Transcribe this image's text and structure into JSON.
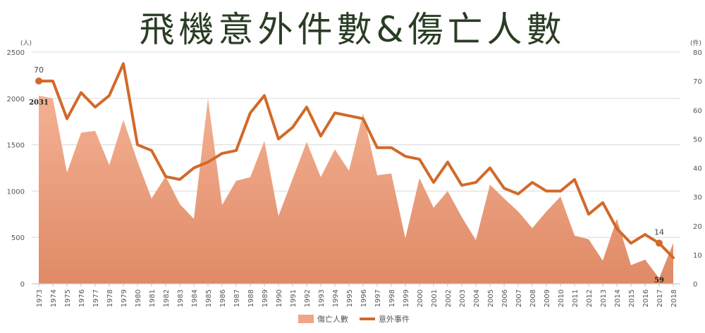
{
  "title": "飛機意外件數&傷亡人數",
  "chart_data": {
    "type": "area+line",
    "left_axis_unit": "(人)",
    "right_axis_unit": "(件)",
    "left_ylim": [
      0,
      2500
    ],
    "right_ylim": [
      0,
      80
    ],
    "left_ticks": [
      "0",
      "500",
      "1000",
      "1500",
      "2000",
      "2500"
    ],
    "right_ticks": [
      "0",
      "10",
      "20",
      "30",
      "40",
      "50",
      "60",
      "70",
      "80"
    ],
    "categories": [
      "1973",
      "1974",
      "1975",
      "1976",
      "1977",
      "1978",
      "1979",
      "1980",
      "1981",
      "1982",
      "1983",
      "1984",
      "1985",
      "1986",
      "1987",
      "1988",
      "1989",
      "1990",
      "1991",
      "1992",
      "1993",
      "1994",
      "1995",
      "1996",
      "1997",
      "1998",
      "1999",
      "2000",
      "2001",
      "2002",
      "2003",
      "2004",
      "2005",
      "2006",
      "2007",
      "2008",
      "2009",
      "2010",
      "2011",
      "2012",
      "2013",
      "2014",
      "2015",
      "2016",
      "2017",
      "2018"
    ],
    "series": [
      {
        "name": "傷亡人數",
        "axis": "left",
        "kind": "area",
        "color": "#e8916b",
        "values": [
          2031,
          2000,
          1200,
          1630,
          1650,
          1280,
          1770,
          1320,
          920,
          1160,
          860,
          700,
          2000,
          850,
          1110,
          1150,
          1540,
          730,
          1130,
          1530,
          1150,
          1450,
          1220,
          1840,
          1170,
          1190,
          490,
          1140,
          820,
          1000,
          720,
          470,
          1070,
          920,
          780,
          600,
          780,
          940,
          520,
          480,
          250,
          700,
          200,
          260,
          59,
          440
        ]
      },
      {
        "name": "意外事件",
        "axis": "right",
        "kind": "line",
        "color": "#d2692a",
        "values": [
          70,
          70,
          57,
          66,
          61,
          65,
          76,
          48,
          46,
          37,
          36,
          40,
          42,
          45,
          46,
          59,
          65,
          50,
          54,
          61,
          51,
          59,
          58,
          57,
          47,
          47,
          44,
          43,
          35,
          42,
          34,
          35,
          40,
          33,
          31,
          35,
          32,
          32,
          36,
          24,
          28,
          19,
          14,
          17,
          14,
          9
        ]
      }
    ],
    "data_labels": [
      {
        "series": "意外事件",
        "category": "1973",
        "text": "70"
      },
      {
        "series": "傷亡人數",
        "category": "1973",
        "text": "2031"
      },
      {
        "series": "意外事件",
        "category": "2017",
        "text": "14"
      },
      {
        "series": "傷亡人數",
        "category": "2017",
        "text": "59"
      }
    ],
    "legend_position": "bottom"
  }
}
